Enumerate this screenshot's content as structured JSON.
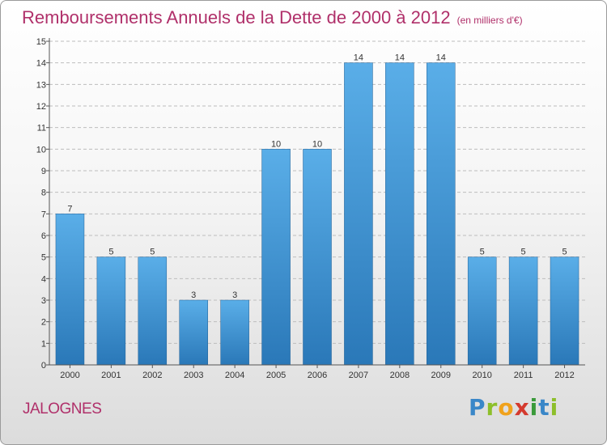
{
  "title": "Remboursements Annuels de la Dette de 2000 à 2012",
  "unit": "(en milliers d'€)",
  "town": "JALOGNES",
  "logo": {
    "name": "Proxiti"
  },
  "colors": {
    "title": "#b0306a",
    "bar_light": "#5aaee8",
    "bar_dark": "#2a78b8",
    "grid": "#bdbdbd"
  },
  "chart_data": {
    "type": "bar",
    "title": "Remboursements Annuels de la Dette de 2000 à 2012",
    "categories": [
      "2000",
      "2001",
      "2002",
      "2003",
      "2004",
      "2005",
      "2006",
      "2007",
      "2008",
      "2009",
      "2010",
      "2011",
      "2012"
    ],
    "values": [
      7,
      5,
      5,
      3,
      3,
      10,
      10,
      14,
      14,
      14,
      5,
      5,
      5
    ],
    "ylim": [
      0,
      15
    ],
    "yticks": [
      0,
      1,
      2,
      3,
      4,
      5,
      6,
      7,
      8,
      9,
      10,
      11,
      12,
      13,
      14,
      15
    ],
    "grid": true,
    "data_labels": true
  }
}
